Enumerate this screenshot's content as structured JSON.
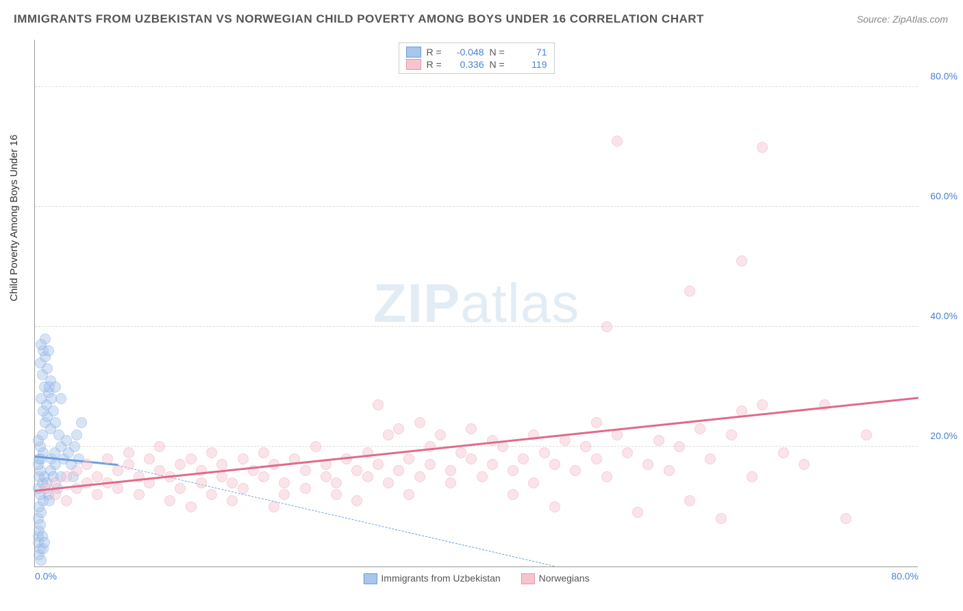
{
  "title": "IMMIGRANTS FROM UZBEKISTAN VS NORWEGIAN CHILD POVERTY AMONG BOYS UNDER 16 CORRELATION CHART",
  "source": "Source: ZipAtlas.com",
  "ylabel": "Child Poverty Among Boys Under 16",
  "watermark_a": "ZIP",
  "watermark_b": "atlas",
  "chart": {
    "type": "scatter",
    "background_color": "#ffffff",
    "grid_color": "#dddddd",
    "axis_color": "#999999",
    "tick_color": "#4a80d6",
    "xlim": [
      0,
      85
    ],
    "ylim": [
      0,
      88
    ],
    "yticks": [
      20,
      40,
      60,
      80
    ],
    "ytick_labels": [
      "20.0%",
      "40.0%",
      "60.0%",
      "80.0%"
    ],
    "xtick_left": {
      "pos": 0,
      "label": "0.0%"
    },
    "xtick_right": {
      "pos": 85,
      "label": "80.0%"
    },
    "marker_radius": 8,
    "marker_opacity": 0.45,
    "series": [
      {
        "name": "Immigrants from Uzbekistan",
        "fill": "#a8c5ec",
        "stroke": "#6a9de0",
        "R": "-0.048",
        "N": "71",
        "trend": {
          "x1": 0,
          "y1": 18.2,
          "x2": 8,
          "y2": 16.8,
          "width": 3,
          "color": "#6a9de0",
          "dash": false
        },
        "trend_ext": {
          "x1": 8,
          "y1": 16.8,
          "x2": 50,
          "y2": 0,
          "width": 1.2,
          "color": "#6a9de0",
          "dash": true
        },
        "points": [
          [
            0.3,
            5
          ],
          [
            0.4,
            2
          ],
          [
            0.5,
            3
          ],
          [
            0.6,
            1
          ],
          [
            0.3,
            4
          ],
          [
            0.8,
            3
          ],
          [
            0.4,
            6
          ],
          [
            0.7,
            5
          ],
          [
            0.5,
            7
          ],
          [
            0.9,
            4
          ],
          [
            0.3,
            8
          ],
          [
            0.6,
            9
          ],
          [
            0.4,
            10
          ],
          [
            0.8,
            11
          ],
          [
            0.5,
            12
          ],
          [
            0.3,
            13
          ],
          [
            0.7,
            14
          ],
          [
            0.4,
            15
          ],
          [
            0.9,
            15
          ],
          [
            0.5,
            16
          ],
          [
            0.3,
            17
          ],
          [
            0.6,
            18
          ],
          [
            0.4,
            18
          ],
          [
            0.8,
            19
          ],
          [
            0.5,
            20
          ],
          [
            0.3,
            21
          ],
          [
            0.7,
            22
          ],
          [
            1.2,
            14
          ],
          [
            1.5,
            16
          ],
          [
            1.3,
            12
          ],
          [
            1.8,
            15
          ],
          [
            1.6,
            18
          ],
          [
            1.4,
            11
          ],
          [
            2.0,
            17
          ],
          [
            2.2,
            13
          ],
          [
            1.9,
            19
          ],
          [
            2.5,
            15
          ],
          [
            1.0,
            24
          ],
          [
            1.2,
            25
          ],
          [
            1.5,
            23
          ],
          [
            0.8,
            26
          ],
          [
            1.1,
            27
          ],
          [
            0.6,
            28
          ],
          [
            1.3,
            29
          ],
          [
            0.9,
            30
          ],
          [
            1.5,
            31
          ],
          [
            0.7,
            32
          ],
          [
            1.2,
            33
          ],
          [
            0.5,
            34
          ],
          [
            1.0,
            35
          ],
          [
            0.8,
            36
          ],
          [
            1.4,
            30
          ],
          [
            1.6,
            28
          ],
          [
            1.8,
            26
          ],
          [
            2.0,
            24
          ],
          [
            2.3,
            22
          ],
          [
            2.5,
            20
          ],
          [
            2.8,
            18
          ],
          [
            3.0,
            21
          ],
          [
            3.2,
            19
          ],
          [
            3.5,
            17
          ],
          [
            3.8,
            20
          ],
          [
            4.0,
            22
          ],
          [
            4.5,
            24
          ],
          [
            4.2,
            18
          ],
          [
            3.7,
            15
          ],
          [
            1.0,
            38
          ],
          [
            0.6,
            37
          ],
          [
            1.3,
            36
          ],
          [
            2.0,
            30
          ],
          [
            2.5,
            28
          ]
        ]
      },
      {
        "name": "Norwegians",
        "fill": "#f5c4cf",
        "stroke": "#e895aa",
        "R": "0.336",
        "N": "119",
        "trend": {
          "x1": 0,
          "y1": 12.5,
          "x2": 85,
          "y2": 28,
          "width": 3,
          "color": "#e06a8a",
          "dash": false
        },
        "points": [
          [
            1,
            13
          ],
          [
            2,
            14
          ],
          [
            2,
            12
          ],
          [
            3,
            15
          ],
          [
            3,
            11
          ],
          [
            4,
            16
          ],
          [
            4,
            13
          ],
          [
            5,
            14
          ],
          [
            5,
            17
          ],
          [
            6,
            15
          ],
          [
            6,
            12
          ],
          [
            7,
            18
          ],
          [
            7,
            14
          ],
          [
            8,
            16
          ],
          [
            8,
            13
          ],
          [
            9,
            17
          ],
          [
            9,
            19
          ],
          [
            10,
            15
          ],
          [
            10,
            12
          ],
          [
            11,
            18
          ],
          [
            11,
            14
          ],
          [
            12,
            16
          ],
          [
            12,
            20
          ],
          [
            13,
            15
          ],
          [
            13,
            11
          ],
          [
            14,
            17
          ],
          [
            14,
            13
          ],
          [
            15,
            18
          ],
          [
            15,
            10
          ],
          [
            16,
            16
          ],
          [
            16,
            14
          ],
          [
            17,
            19
          ],
          [
            17,
            12
          ],
          [
            18,
            17
          ],
          [
            18,
            15
          ],
          [
            19,
            11
          ],
          [
            19,
            14
          ],
          [
            20,
            18
          ],
          [
            20,
            13
          ],
          [
            21,
            16
          ],
          [
            22,
            15
          ],
          [
            22,
            19
          ],
          [
            23,
            10
          ],
          [
            23,
            17
          ],
          [
            24,
            14
          ],
          [
            24,
            12
          ],
          [
            25,
            18
          ],
          [
            26,
            16
          ],
          [
            26,
            13
          ],
          [
            27,
            20
          ],
          [
            28,
            15
          ],
          [
            28,
            17
          ],
          [
            29,
            14
          ],
          [
            29,
            12
          ],
          [
            30,
            18
          ],
          [
            31,
            16
          ],
          [
            31,
            11
          ],
          [
            32,
            19
          ],
          [
            32,
            15
          ],
          [
            33,
            17
          ],
          [
            33,
            27
          ],
          [
            34,
            22
          ],
          [
            34,
            14
          ],
          [
            35,
            23
          ],
          [
            35,
            16
          ],
          [
            36,
            18
          ],
          [
            36,
            12
          ],
          [
            37,
            24
          ],
          [
            37,
            15
          ],
          [
            38,
            20
          ],
          [
            38,
            17
          ],
          [
            39,
            22
          ],
          [
            40,
            16
          ],
          [
            40,
            14
          ],
          [
            41,
            19
          ],
          [
            42,
            18
          ],
          [
            42,
            23
          ],
          [
            43,
            15
          ],
          [
            44,
            21
          ],
          [
            44,
            17
          ],
          [
            45,
            20
          ],
          [
            46,
            16
          ],
          [
            46,
            12
          ],
          [
            47,
            18
          ],
          [
            48,
            22
          ],
          [
            48,
            14
          ],
          [
            49,
            19
          ],
          [
            50,
            17
          ],
          [
            50,
            10
          ],
          [
            51,
            21
          ],
          [
            52,
            16
          ],
          [
            53,
            20
          ],
          [
            54,
            18
          ],
          [
            54,
            24
          ],
          [
            55,
            15
          ],
          [
            56,
            22
          ],
          [
            57,
            19
          ],
          [
            58,
            9
          ],
          [
            59,
            17
          ],
          [
            60,
            21
          ],
          [
            61,
            16
          ],
          [
            62,
            20
          ],
          [
            63,
            11
          ],
          [
            64,
            23
          ],
          [
            65,
            18
          ],
          [
            66,
            8
          ],
          [
            67,
            22
          ],
          [
            68,
            26
          ],
          [
            69,
            15
          ],
          [
            70,
            27
          ],
          [
            55,
            40
          ],
          [
            56,
            71
          ],
          [
            63,
            46
          ],
          [
            68,
            51
          ],
          [
            70,
            70
          ],
          [
            72,
            19
          ],
          [
            74,
            17
          ],
          [
            76,
            27
          ],
          [
            78,
            8
          ],
          [
            80,
            22
          ]
        ]
      }
    ]
  },
  "legend_bottom": [
    {
      "label": "Immigrants from Uzbekistan",
      "fill": "#a8c5ec",
      "stroke": "#6a9de0"
    },
    {
      "label": "Norwegians",
      "fill": "#f5c4cf",
      "stroke": "#e895aa"
    }
  ]
}
